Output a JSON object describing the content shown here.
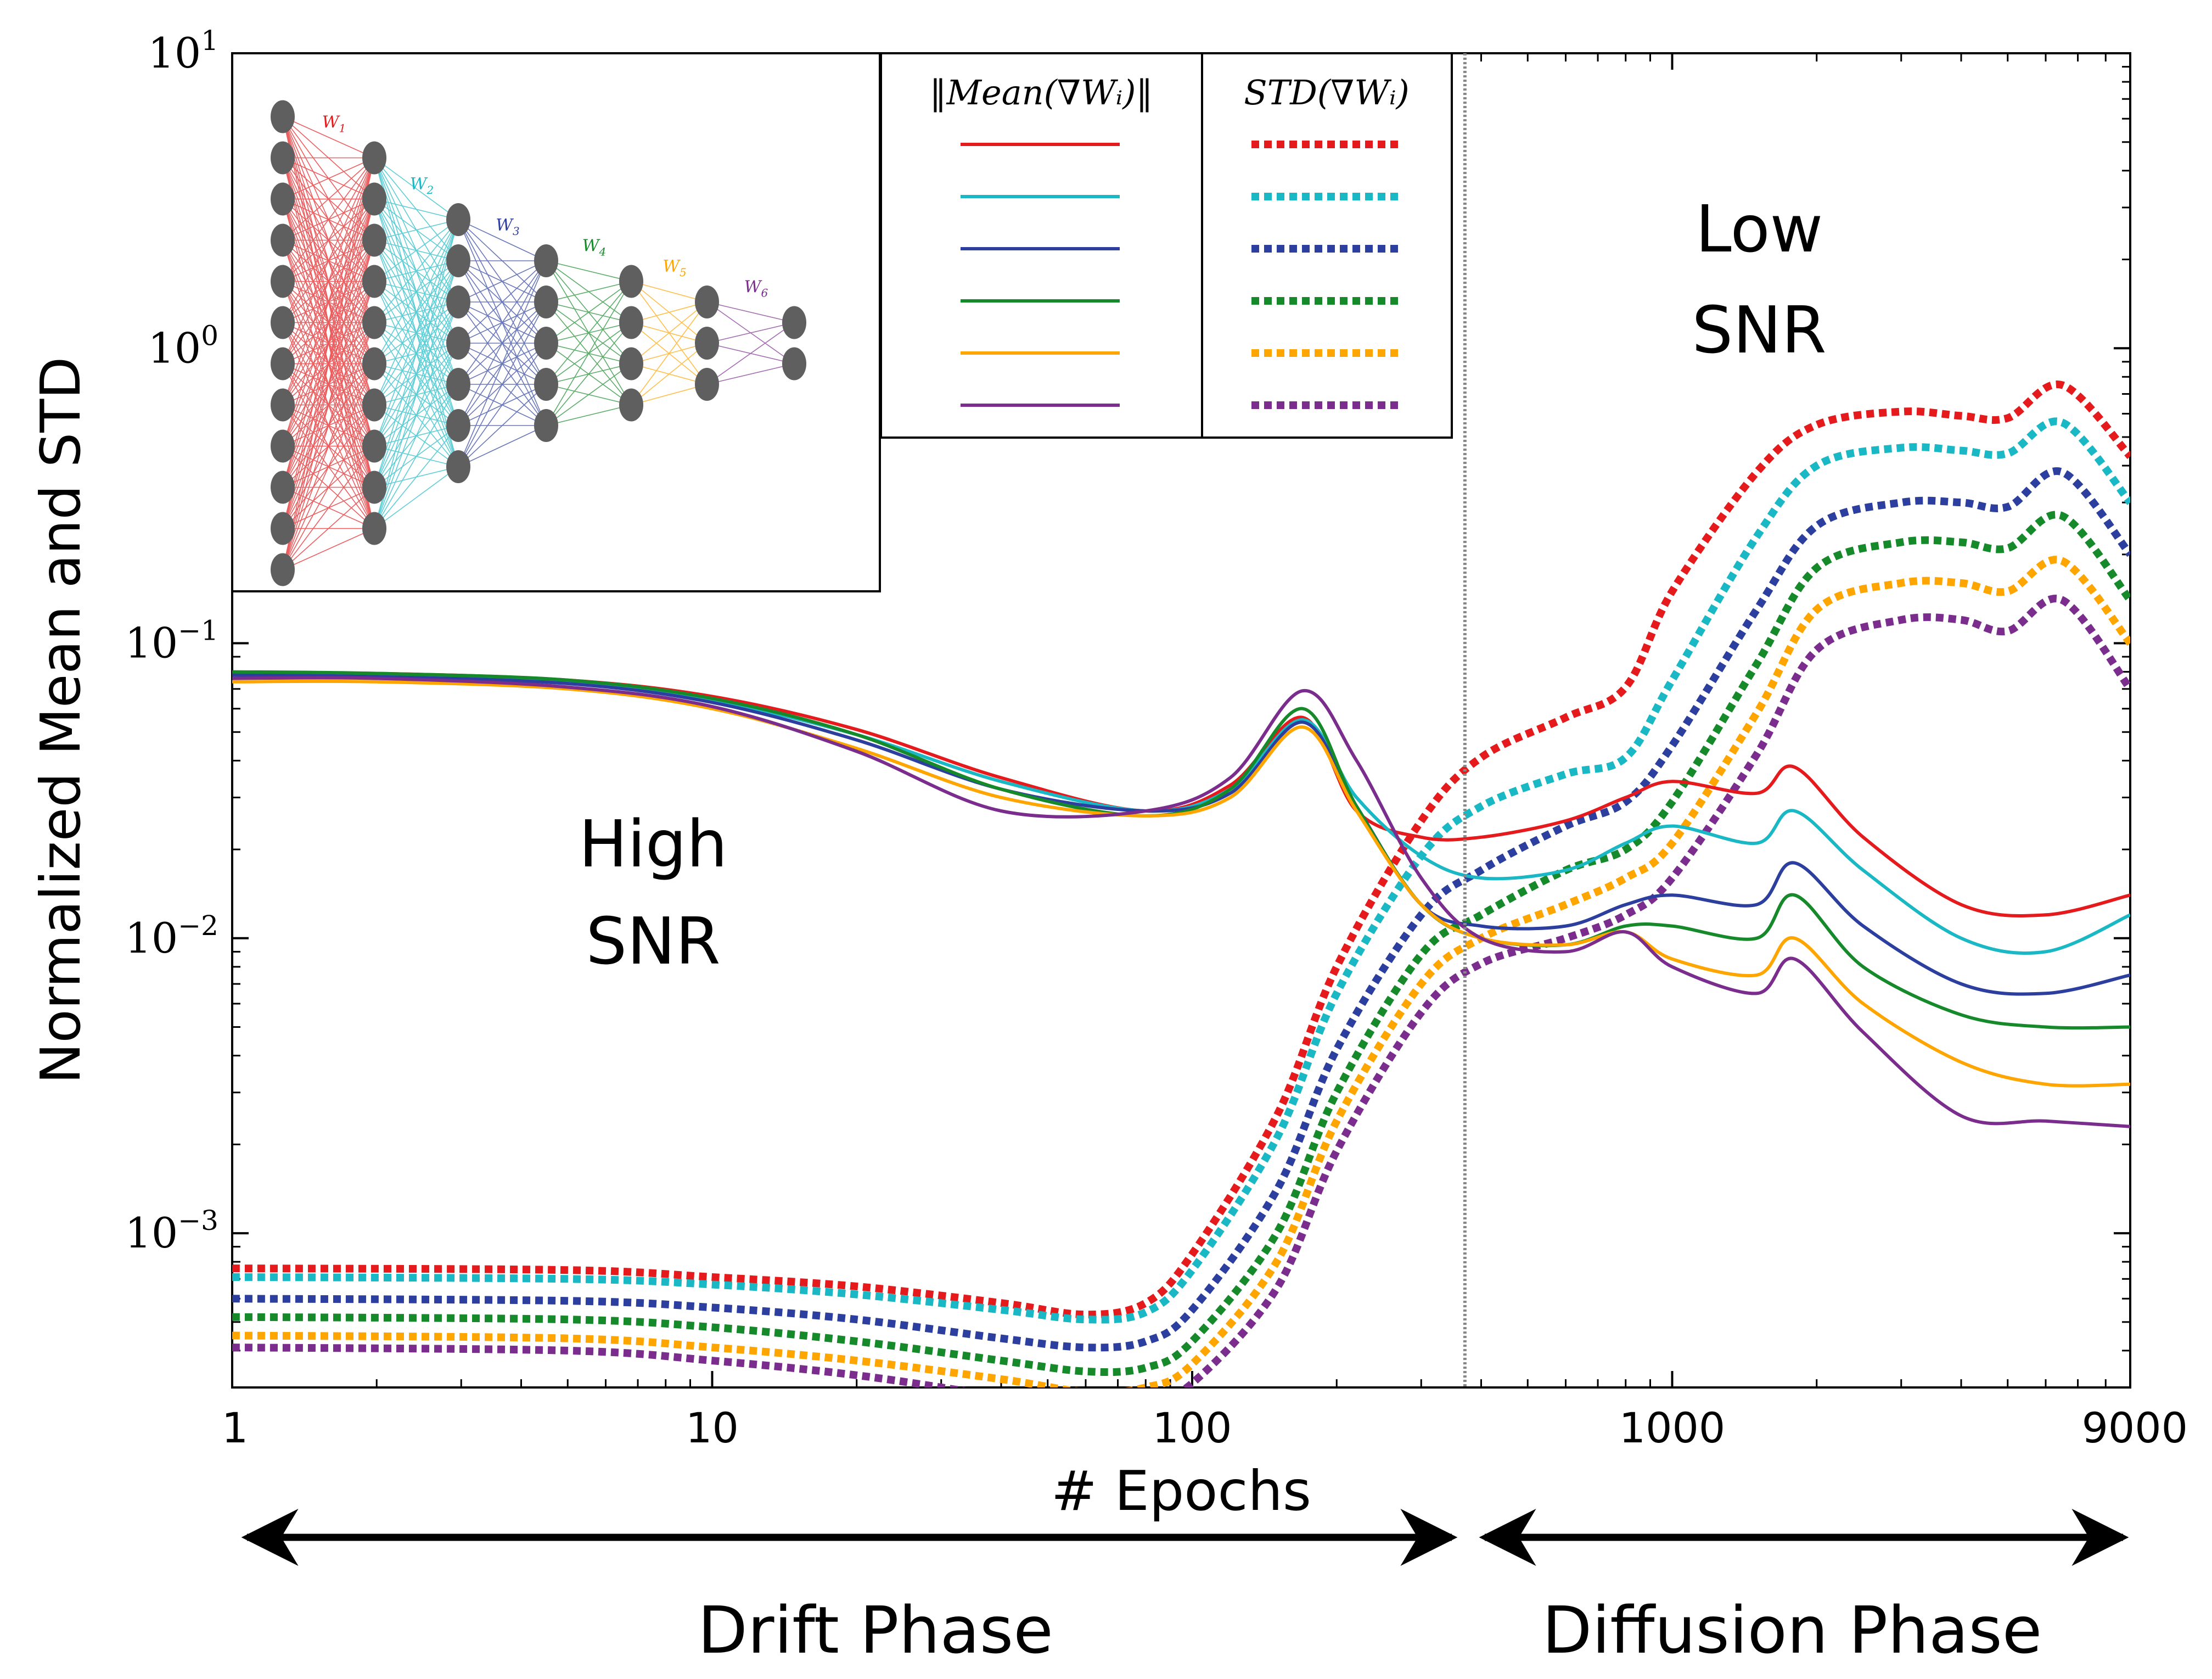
{
  "chart_data": {
    "type": "line",
    "xlabel": "# Epochs",
    "ylabel": "Normalized Mean and STD",
    "x_scale": "log",
    "y_scale": "log",
    "xlim": [
      1,
      9000
    ],
    "ylim": [
      0.0003,
      10
    ],
    "x_ticks": [
      1,
      10,
      100,
      1000,
      9000
    ],
    "x_tick_labels": [
      "1",
      "10",
      "100",
      "1000",
      "9000"
    ],
    "y_ticks": [
      0.001,
      0.01,
      0.1,
      1,
      10
    ],
    "y_tick_labels": [
      {
        "base": "10",
        "exp": "−3"
      },
      {
        "base": "10",
        "exp": "−2"
      },
      {
        "base": "10",
        "exp": "−1"
      },
      {
        "base": "10",
        "exp": "0"
      },
      {
        "base": "10",
        "exp": "1"
      }
    ],
    "grid": false,
    "phase_boundary_x": 370,
    "legend": {
      "placement": "top-center",
      "mean_header": "‖Mean(∇Wᵢ)‖",
      "std_header": "STD(∇Wᵢ)"
    },
    "inset": {
      "placement": "top-left",
      "weights": [
        "W1",
        "W2",
        "W3",
        "W4",
        "W5",
        "W6"
      ],
      "neurons": [
        12,
        10,
        7,
        5,
        4,
        3,
        2
      ]
    },
    "annotations": {
      "high_snr": [
        "High",
        "SNR"
      ],
      "low_snr": [
        "Low",
        "SNR"
      ],
      "drift_phase": "Drift Phase",
      "diffusion_phase": "Diffusion Phase"
    },
    "colors": [
      "#e41a1c",
      "#1ab8c4",
      "#2c3f9e",
      "#168a2a",
      "#ffa500",
      "#7b2d8e"
    ],
    "series": [
      {
        "layer": 1,
        "mean": {
          "x": [
            1,
            2,
            5,
            10,
            20,
            40,
            80,
            120,
            170,
            220,
            300,
            400,
            600,
            800,
            1000,
            1500,
            1800,
            2500,
            4000,
            6000,
            9000
          ],
          "y": [
            0.079,
            0.079,
            0.075,
            0.066,
            0.051,
            0.035,
            0.027,
            0.033,
            0.056,
            0.027,
            0.022,
            0.022,
            0.025,
            0.03,
            0.034,
            0.031,
            0.038,
            0.022,
            0.013,
            0.012,
            0.014
          ]
        },
        "std": {
          "x": [
            1,
            5,
            10,
            20,
            40,
            60,
            80,
            100,
            150,
            200,
            300,
            400,
            600,
            800,
            1000,
            1500,
            2000,
            3000,
            4000,
            5000,
            6500,
            9000
          ],
          "y": [
            0.00076,
            0.00075,
            0.00071,
            0.00066,
            0.00058,
            0.00053,
            0.00058,
            0.00085,
            0.0025,
            0.008,
            0.025,
            0.041,
            0.056,
            0.071,
            0.15,
            0.38,
            0.55,
            0.61,
            0.59,
            0.58,
            0.75,
            0.43
          ]
        }
      },
      {
        "layer": 2,
        "mean": {
          "x": [
            1,
            2,
            5,
            10,
            20,
            40,
            80,
            120,
            170,
            220,
            300,
            400,
            600,
            800,
            1000,
            1500,
            1800,
            2500,
            4000,
            6000,
            9000
          ],
          "y": [
            0.078,
            0.078,
            0.074,
            0.064,
            0.049,
            0.034,
            0.027,
            0.032,
            0.055,
            0.03,
            0.019,
            0.016,
            0.017,
            0.021,
            0.024,
            0.021,
            0.027,
            0.017,
            0.01,
            0.009,
            0.012
          ]
        },
        "std": {
          "x": [
            1,
            5,
            10,
            20,
            40,
            60,
            80,
            100,
            150,
            200,
            300,
            400,
            600,
            800,
            1000,
            1500,
            2000,
            3000,
            4000,
            5000,
            6500,
            9000
          ],
          "y": [
            0.00071,
            0.0007,
            0.00067,
            0.00062,
            0.00055,
            0.00051,
            0.00054,
            0.00075,
            0.0021,
            0.0065,
            0.019,
            0.028,
            0.036,
            0.041,
            0.075,
            0.23,
            0.4,
            0.46,
            0.45,
            0.44,
            0.56,
            0.3
          ]
        }
      },
      {
        "layer": 3,
        "mean": {
          "x": [
            1,
            2,
            5,
            10,
            20,
            40,
            80,
            120,
            170,
            220,
            300,
            400,
            600,
            800,
            1000,
            1500,
            1800,
            2500,
            4000,
            6000,
            9000
          ],
          "y": [
            0.078,
            0.077,
            0.073,
            0.063,
            0.047,
            0.032,
            0.027,
            0.031,
            0.054,
            0.028,
            0.013,
            0.011,
            0.011,
            0.013,
            0.014,
            0.013,
            0.018,
            0.011,
            0.007,
            0.0065,
            0.0075
          ]
        },
        "std": {
          "x": [
            1,
            5,
            10,
            20,
            40,
            60,
            80,
            100,
            150,
            200,
            300,
            400,
            600,
            800,
            1000,
            1500,
            2000,
            3000,
            4000,
            5000,
            6500,
            9000
          ],
          "y": [
            0.0006,
            0.00059,
            0.00056,
            0.00051,
            0.00044,
            0.00041,
            0.00043,
            0.00055,
            0.0014,
            0.0042,
            0.012,
            0.017,
            0.024,
            0.029,
            0.045,
            0.13,
            0.25,
            0.3,
            0.3,
            0.29,
            0.38,
            0.2
          ]
        }
      },
      {
        "layer": 4,
        "mean": {
          "x": [
            1,
            2,
            5,
            10,
            20,
            40,
            80,
            120,
            170,
            220,
            300,
            400,
            600,
            800,
            1000,
            1500,
            1800,
            2500,
            4000,
            6000,
            9000
          ],
          "y": [
            0.08,
            0.079,
            0.075,
            0.065,
            0.049,
            0.032,
            0.026,
            0.032,
            0.06,
            0.028,
            0.013,
            0.01,
            0.0095,
            0.011,
            0.011,
            0.01,
            0.014,
            0.008,
            0.0055,
            0.005,
            0.005
          ]
        },
        "std": {
          "x": [
            1,
            5,
            10,
            20,
            40,
            60,
            80,
            100,
            150,
            200,
            300,
            400,
            600,
            800,
            1000,
            1500,
            2000,
            3000,
            4000,
            5000,
            6500,
            9000
          ],
          "y": [
            0.00052,
            0.00051,
            0.00048,
            0.00043,
            0.00037,
            0.00034,
            0.00035,
            0.00043,
            0.001,
            0.003,
            0.0088,
            0.012,
            0.017,
            0.02,
            0.029,
            0.085,
            0.18,
            0.22,
            0.22,
            0.21,
            0.27,
            0.14
          ]
        }
      },
      {
        "layer": 5,
        "mean": {
          "x": [
            1,
            2,
            5,
            10,
            20,
            40,
            80,
            120,
            170,
            220,
            300,
            400,
            600,
            800,
            1000,
            1500,
            1800,
            2500,
            4000,
            6000,
            9000
          ],
          "y": [
            0.074,
            0.074,
            0.07,
            0.06,
            0.044,
            0.03,
            0.026,
            0.03,
            0.052,
            0.027,
            0.013,
            0.01,
            0.0095,
            0.0105,
            0.0085,
            0.0075,
            0.01,
            0.006,
            0.0038,
            0.0032,
            0.0032
          ]
        },
        "std": {
          "x": [
            1,
            5,
            10,
            20,
            40,
            60,
            80,
            100,
            150,
            200,
            300,
            400,
            600,
            800,
            1000,
            1500,
            2000,
            3000,
            4000,
            5000,
            6500,
            9000
          ],
          "y": [
            0.00045,
            0.00044,
            0.00041,
            0.00037,
            0.00032,
            0.00029,
            0.0003,
            0.00036,
            0.0008,
            0.0024,
            0.007,
            0.01,
            0.013,
            0.016,
            0.021,
            0.058,
            0.13,
            0.16,
            0.16,
            0.15,
            0.19,
            0.1
          ]
        }
      },
      {
        "layer": 6,
        "mean": {
          "x": [
            1,
            2,
            5,
            10,
            20,
            40,
            80,
            120,
            170,
            220,
            300,
            400,
            600,
            800,
            1000,
            1500,
            1800,
            2500,
            4000,
            6000,
            9000
          ],
          "y": [
            0.076,
            0.076,
            0.071,
            0.061,
            0.043,
            0.027,
            0.027,
            0.035,
            0.069,
            0.04,
            0.016,
            0.01,
            0.009,
            0.0105,
            0.008,
            0.0065,
            0.0085,
            0.0048,
            0.0025,
            0.0024,
            0.0023
          ]
        },
        "std": {
          "x": [
            1,
            5,
            10,
            20,
            40,
            60,
            80,
            100,
            150,
            200,
            300,
            400,
            600,
            800,
            1000,
            1500,
            2000,
            3000,
            4000,
            5000,
            6500,
            9000
          ],
          "y": [
            0.00041,
            0.0004,
            0.00037,
            0.00033,
            0.00028,
            0.00026,
            0.00027,
            0.00031,
            0.00065,
            0.0019,
            0.0056,
            0.0082,
            0.01,
            0.012,
            0.016,
            0.042,
            0.095,
            0.12,
            0.12,
            0.11,
            0.14,
            0.07
          ]
        }
      }
    ]
  }
}
